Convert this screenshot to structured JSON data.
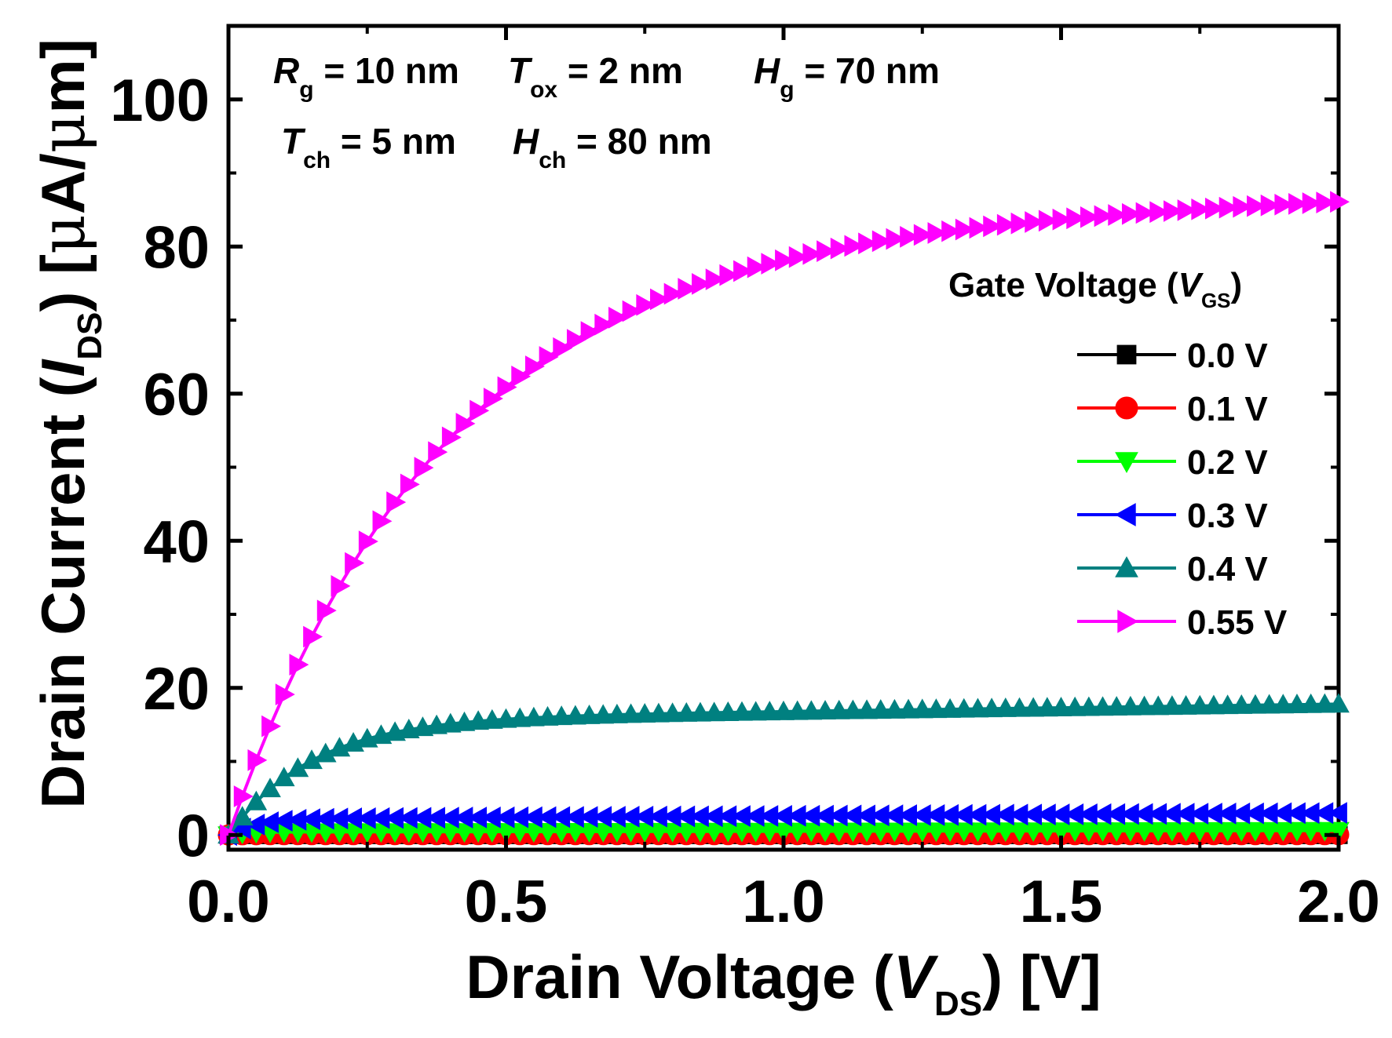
{
  "chart_data": {
    "type": "line",
    "xlabel": {
      "main": "Drain Voltage (",
      "italic": "V",
      "sub": "DS",
      "tail": ") [V]"
    },
    "ylabel": {
      "main": "Drain Current (",
      "italic": "I",
      "sub": "DS",
      "tail": ") [",
      "mu": "μ",
      "unit_tail": "A/",
      "mu2": "μ",
      "unit_end": "m]"
    },
    "xlim": [
      0.0,
      2.0
    ],
    "ylim": [
      -2,
      110
    ],
    "x_ticks": [
      "0.0",
      "0.5",
      "1.0",
      "1.5",
      "2.0"
    ],
    "x_tick_values": [
      0.0,
      0.5,
      1.0,
      1.5,
      2.0
    ],
    "y_ticks": [
      "0",
      "20",
      "40",
      "60",
      "80",
      "100"
    ],
    "y_tick_values": [
      0,
      20,
      40,
      60,
      80,
      100
    ],
    "annotations": {
      "line1": [
        {
          "sym": "R",
          "sub": "g",
          "val": " = 10 nm"
        },
        {
          "sym": "T",
          "sub": "ox",
          "val": " = 2 nm"
        },
        {
          "sym": "H",
          "sub": "g",
          "val": " = 70 nm"
        }
      ],
      "line2": [
        {
          "sym": "T",
          "sub": "ch",
          "val": " = 5 nm"
        },
        {
          "sym": "H",
          "sub": "ch",
          "val": " = 80 nm"
        }
      ]
    },
    "legend": {
      "title_main": "Gate Voltage (",
      "title_italic": "V",
      "title_sub": "GS",
      "title_tail": ")",
      "position": "right"
    },
    "series": [
      {
        "name": "0.0 V",
        "color": "#000000",
        "marker": "square",
        "vsat": 0.0,
        "isat": 0.0,
        "slope": 0.0
      },
      {
        "name": "0.1 V",
        "color": "#ff0000",
        "marker": "circle",
        "vsat": 0.02,
        "isat": 0.05,
        "slope": 0.0
      },
      {
        "name": "0.2 V",
        "color": "#00ff00",
        "marker": "triangle-down",
        "vsat": 0.03,
        "isat": 0.4,
        "slope": 0.1
      },
      {
        "name": "0.3 V",
        "color": "#0000ff",
        "marker": "triangle-left",
        "vsat": 0.05,
        "isat": 2.2,
        "slope": 0.4
      },
      {
        "name": "0.4 V",
        "color": "#008080",
        "marker": "triangle-up",
        "vsat": 0.15,
        "isat": 15.8,
        "slope": 1.0
      },
      {
        "name": "0.55 V",
        "color": "#ff00ff",
        "marker": "triangle-right",
        "vsat": 0.38,
        "isat": 81.5,
        "slope": 2.5
      }
    ],
    "x_start": 0.0,
    "x_step": 0.025,
    "x_count": 81
  }
}
